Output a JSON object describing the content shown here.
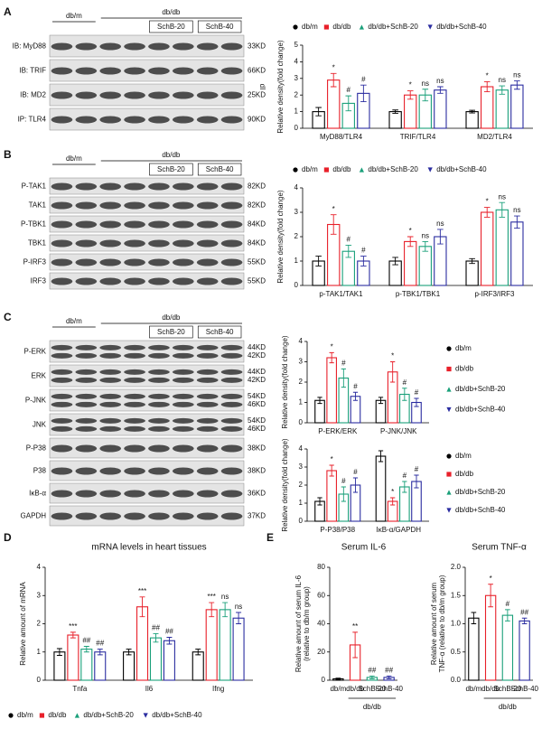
{
  "blots": [
    {
      "panel": "A",
      "header": {
        "control": "db/m",
        "model": "db/db",
        "treatments": [
          "SchB-20",
          "SchB-40"
        ]
      },
      "rows": [
        {
          "label": "IB: MyD88",
          "size": [
            "33KD"
          ]
        },
        {
          "label": "IB: TRIF",
          "size": [
            "66KD"
          ]
        },
        {
          "label": "IB: MD2",
          "size": [
            "25KD"
          ]
        },
        {
          "label": "IP: TLR4",
          "size": [
            "90KD"
          ]
        }
      ]
    },
    {
      "panel": "B",
      "header": {
        "control": "db/m",
        "model": "db/db",
        "treatments": [
          "SchB-20",
          "SchB-40"
        ]
      },
      "rows": [
        {
          "label": "P-TAK1",
          "size": [
            "82KD"
          ]
        },
        {
          "label": "TAK1",
          "size": [
            "82KD"
          ]
        },
        {
          "label": "P-TBK1",
          "size": [
            "84KD"
          ]
        },
        {
          "label": "TBK1",
          "size": [
            "84KD"
          ]
        },
        {
          "label": "P-IRF3",
          "size": [
            "55KD"
          ]
        },
        {
          "label": "IRF3",
          "size": [
            "55KD"
          ]
        }
      ]
    },
    {
      "panel": "C",
      "header": {
        "control": "db/m",
        "model": "db/db",
        "treatments": [
          "SchB-20",
          "SchB-40"
        ]
      },
      "rows": [
        {
          "label": "P-ERK",
          "size": [
            "44KD",
            "42KD"
          ]
        },
        {
          "label": "ERK",
          "size": [
            "44KD",
            "42KD"
          ]
        },
        {
          "label": "P-JNK",
          "size": [
            "54KD",
            "46KD"
          ]
        },
        {
          "label": "JNK",
          "size": [
            "54KD",
            "46KD"
          ]
        },
        {
          "label": "P-P38",
          "size": [
            "38KD"
          ]
        },
        {
          "label": "P38",
          "size": [
            "38KD"
          ]
        },
        {
          "label": "IκB-α",
          "size": [
            "36KD"
          ]
        },
        {
          "label": "GAPDH",
          "size": [
            "37KD"
          ]
        }
      ]
    }
  ],
  "chart_data": [
    {
      "type": "bar",
      "y_label": "Relative density(fold change)",
      "side_text": "dI",
      "legend": "top",
      "ylim": [
        0,
        5
      ],
      "yticks": [
        0,
        1,
        2,
        3,
        4,
        5
      ],
      "categories": [
        "MyD88/TLR4",
        "TRIF/TLR4",
        "MD2/TLR4"
      ],
      "series": [
        {
          "name": "db/m",
          "color": "#000000",
          "marker": "circle",
          "values": [
            1.0,
            1.0,
            1.0
          ],
          "errors": [
            0.25,
            0.1,
            0.08
          ],
          "annotations": [
            null,
            null,
            null
          ]
        },
        {
          "name": "db/db",
          "color": "#e8202a",
          "marker": "square",
          "values": [
            2.9,
            2.0,
            2.5
          ],
          "errors": [
            0.4,
            0.25,
            0.3
          ],
          "annotations": [
            "*",
            "*",
            "*"
          ]
        },
        {
          "name": "db/db+SchB-20",
          "color": "#1aa07a",
          "marker": "triangle-up",
          "values": [
            1.5,
            2.0,
            2.3
          ],
          "errors": [
            0.45,
            0.35,
            0.25
          ],
          "annotations": [
            "#",
            "ns",
            "ns"
          ]
        },
        {
          "name": "db/db+SchB-40",
          "color": "#2a2ca0",
          "marker": "triangle-down",
          "values": [
            2.1,
            2.3,
            2.6
          ],
          "errors": [
            0.5,
            0.2,
            0.25
          ],
          "annotations": [
            "#",
            "ns",
            "ns"
          ]
        }
      ]
    },
    {
      "type": "bar",
      "y_label": "Relative density(fold change)",
      "legend": "top",
      "ylim": [
        0,
        4
      ],
      "yticks": [
        0,
        1,
        2,
        3,
        4
      ],
      "categories": [
        "p-TAK1/TAK1",
        "p-TBK1/TBK1",
        "p-IRF3/IRF3"
      ],
      "series": [
        {
          "name": "db/m",
          "color": "#000000",
          "marker": "circle",
          "values": [
            1.0,
            1.0,
            1.0
          ],
          "errors": [
            0.2,
            0.15,
            0.1
          ],
          "annotations": [
            null,
            null,
            null
          ]
        },
        {
          "name": "db/db",
          "color": "#e8202a",
          "marker": "square",
          "values": [
            2.5,
            1.8,
            3.0
          ],
          "errors": [
            0.4,
            0.2,
            0.2
          ],
          "annotations": [
            "*",
            "*",
            "*"
          ]
        },
        {
          "name": "db/db+SchB-20",
          "color": "#1aa07a",
          "marker": "triangle-up",
          "values": [
            1.4,
            1.6,
            3.1
          ],
          "errors": [
            0.25,
            0.2,
            0.3
          ],
          "annotations": [
            "#",
            "ns",
            "ns"
          ]
        },
        {
          "name": "db/db+SchB-40",
          "color": "#2a2ca0",
          "marker": "triangle-down",
          "values": [
            1.0,
            2.0,
            2.6
          ],
          "errors": [
            0.2,
            0.3,
            0.25
          ],
          "annotations": [
            "#",
            "ns",
            "ns"
          ]
        }
      ]
    },
    {
      "type": "bar",
      "y_label": "Relative density(fold change)",
      "legend": "right",
      "ylim": [
        0,
        4
      ],
      "yticks": [
        0,
        1,
        2,
        3,
        4
      ],
      "categories": [
        "P-ERK/ERK",
        "P-JNK/JNK"
      ],
      "series": [
        {
          "name": "db/m",
          "color": "#000000",
          "marker": "circle",
          "values": [
            1.1,
            1.1
          ],
          "errors": [
            0.15,
            0.15
          ],
          "annotations": [
            null,
            null
          ]
        },
        {
          "name": "db/db",
          "color": "#e8202a",
          "marker": "square",
          "values": [
            3.2,
            2.5
          ],
          "errors": [
            0.25,
            0.5
          ],
          "annotations": [
            "*",
            "*"
          ]
        },
        {
          "name": "db/db+SchB-20",
          "color": "#1aa07a",
          "marker": "triangle-up",
          "values": [
            2.2,
            1.4
          ],
          "errors": [
            0.45,
            0.3
          ],
          "annotations": [
            "#",
            "#"
          ]
        },
        {
          "name": "db/db+SchB-40",
          "color": "#2a2ca0",
          "marker": "triangle-down",
          "values": [
            1.3,
            1.0
          ],
          "errors": [
            0.2,
            0.2
          ],
          "annotations": [
            "#",
            "#"
          ]
        }
      ]
    },
    {
      "type": "bar",
      "y_label": "Relative density(fold change)",
      "legend": "right",
      "ylim": [
        0,
        4
      ],
      "yticks": [
        0,
        1,
        2,
        3,
        4
      ],
      "categories": [
        "P-P38/P38",
        "IκB-α/GAPDH"
      ],
      "series": [
        {
          "name": "db/m",
          "color": "#000000",
          "marker": "circle",
          "values": [
            1.1,
            3.6
          ],
          "errors": [
            0.2,
            0.3
          ],
          "annotations": [
            null,
            null
          ]
        },
        {
          "name": "db/db",
          "color": "#e8202a",
          "marker": "square",
          "values": [
            2.8,
            1.1
          ],
          "errors": [
            0.3,
            0.2
          ],
          "annotations": [
            "*",
            "*"
          ]
        },
        {
          "name": "db/db+SchB-20",
          "color": "#1aa07a",
          "marker": "triangle-up",
          "values": [
            1.5,
            1.9
          ],
          "errors": [
            0.4,
            0.3
          ],
          "annotations": [
            "#",
            "#"
          ]
        },
        {
          "name": "db/db+SchB-40",
          "color": "#2a2ca0",
          "marker": "triangle-down",
          "values": [
            2.0,
            2.2
          ],
          "errors": [
            0.4,
            0.35
          ],
          "annotations": [
            "#",
            "#"
          ]
        }
      ]
    },
    {
      "type": "bar",
      "panel": "D",
      "title": "mRNA levels in heart tissues",
      "y_label": "Relative amount of mRNA",
      "legend": "bottom",
      "ylim": [
        0,
        4
      ],
      "yticks": [
        0,
        1,
        2,
        3,
        4
      ],
      "categories": [
        "Tnfa",
        "Il6",
        "Ifng"
      ],
      "series": [
        {
          "name": "db/m",
          "color": "#000000",
          "marker": "circle",
          "values": [
            1.0,
            1.0,
            1.0
          ],
          "errors": [
            0.12,
            0.1,
            0.1
          ],
          "annotations": [
            null,
            null,
            null
          ]
        },
        {
          "name": "db/db",
          "color": "#e8202a",
          "marker": "square",
          "values": [
            1.6,
            2.6,
            2.5
          ],
          "errors": [
            0.1,
            0.35,
            0.25
          ],
          "annotations": [
            "***",
            "***",
            "***"
          ]
        },
        {
          "name": "db/db+SchB-20",
          "color": "#1aa07a",
          "marker": "triangle-up",
          "values": [
            1.1,
            1.5,
            2.5
          ],
          "errors": [
            0.1,
            0.15,
            0.25
          ],
          "annotations": [
            "##",
            "##",
            "ns"
          ]
        },
        {
          "name": "db/db+SchB-40",
          "color": "#2a2ca0",
          "marker": "triangle-down",
          "values": [
            1.0,
            1.4,
            2.2
          ],
          "errors": [
            0.1,
            0.12,
            0.2
          ],
          "annotations": [
            "##",
            "##",
            "ns"
          ]
        }
      ]
    },
    {
      "type": "bar",
      "panel": "E",
      "title": "Serum IL-6",
      "y_label": [
        "Relative amount of serum IL-6",
        "(relative to db/m group)"
      ],
      "ylim": [
        0,
        80
      ],
      "yticks": [
        0,
        20,
        40,
        60,
        80
      ],
      "categories": [
        "db/m",
        "db/db",
        "SchB-20",
        "SchB-40"
      ],
      "group_label": "db/db",
      "colors": [
        "#000000",
        "#e8202a",
        "#1aa07a",
        "#2a2ca0"
      ],
      "values": [
        1,
        25,
        2,
        2
      ],
      "errors": [
        0.5,
        9,
        1,
        1
      ],
      "annotations": [
        null,
        "**",
        "##",
        "##"
      ]
    },
    {
      "type": "bar",
      "title": "Serum TNF-α",
      "y_label": [
        "Relative amount of serum",
        "TNF-α (relative to db/m group)"
      ],
      "ylim": [
        0,
        2
      ],
      "yticks": [
        {
          "value": 0,
          "label": "0.0"
        },
        0.5,
        {
          "value": 1,
          "label": "1.0"
        },
        1.5,
        {
          "value": 2,
          "label": "2.0"
        }
      ],
      "categories": [
        "db/m",
        "db/db",
        "SchB-20",
        "SchB-40"
      ],
      "group_label": "db/db",
      "colors": [
        "#000000",
        "#e8202a",
        "#1aa07a",
        "#2a2ca0"
      ],
      "values": [
        1.1,
        1.5,
        1.15,
        1.05
      ],
      "errors": [
        0.1,
        0.2,
        0.1,
        0.05
      ],
      "annotations": [
        null,
        "*",
        "#",
        "##"
      ]
    }
  ]
}
